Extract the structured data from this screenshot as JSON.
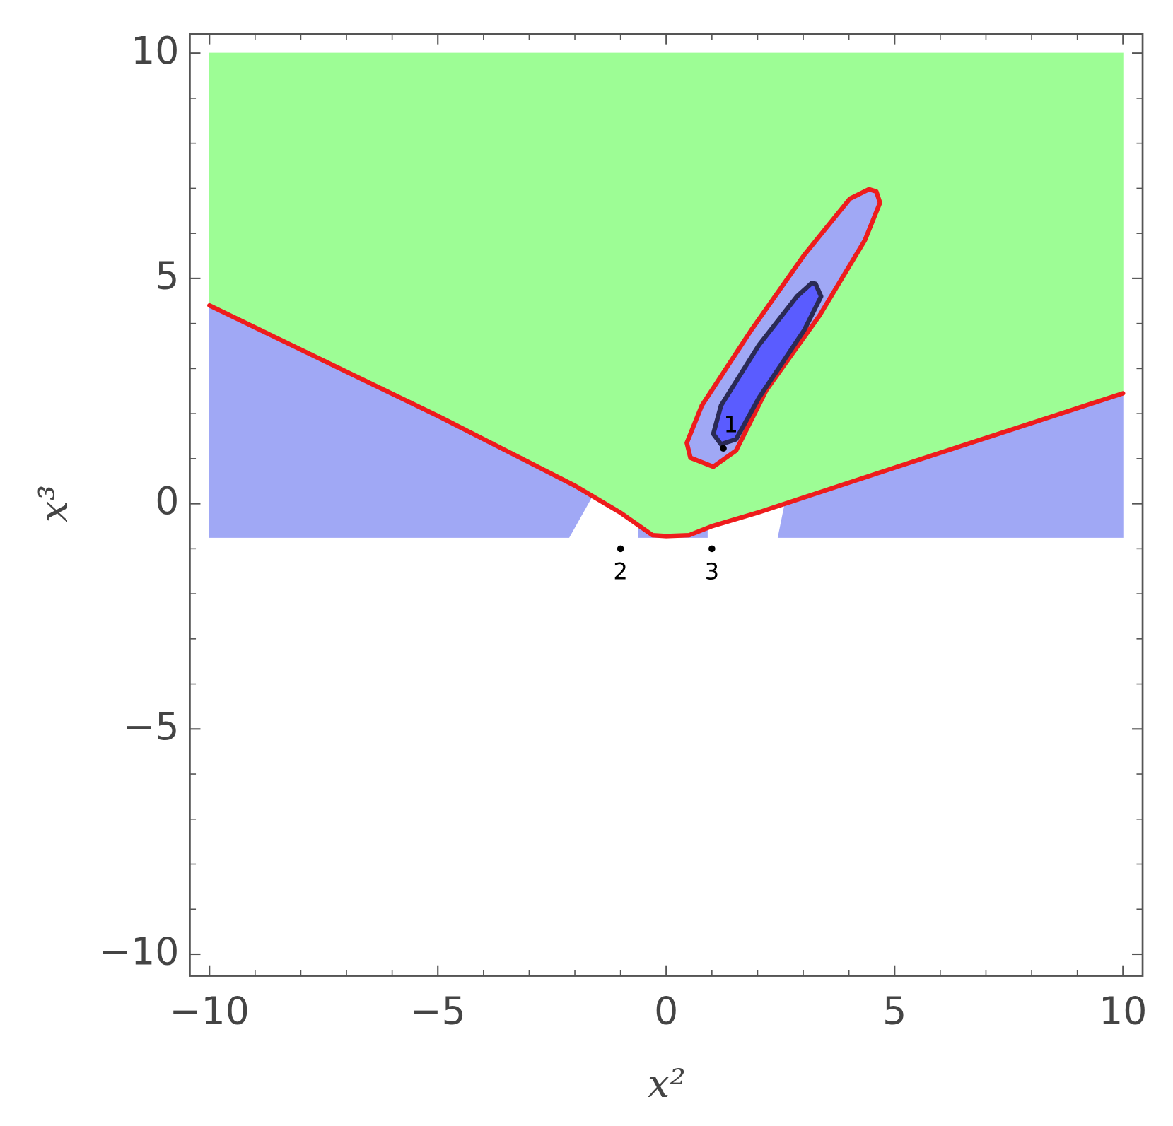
{
  "chart_data": {
    "type": "region",
    "xlabel": "x²",
    "ylabel": "x³",
    "xlim": [
      -10.43,
      10.43
    ],
    "ylim": [
      -10.48,
      10.43
    ],
    "xticks": [
      {
        "value": -10,
        "label": "−10"
      },
      {
        "value": -5,
        "label": "−5"
      },
      0,
      5,
      10
    ],
    "yticks": [
      {
        "value": -10,
        "label": "−10"
      },
      {
        "value": -5,
        "label": "−5"
      },
      0,
      5,
      10
    ],
    "xminorticks": [
      -9,
      -8,
      -7,
      -6,
      -4,
      -3,
      -2,
      -1,
      1,
      2,
      3,
      4,
      6,
      7,
      8,
      9
    ],
    "yminorticks": [
      -9,
      -8,
      -7,
      -6,
      -4,
      -3,
      -2,
      -1,
      1,
      2,
      3,
      4,
      6,
      7,
      8,
      9
    ],
    "regions": [
      {
        "color": "#9dfd95",
        "x": [
          -10,
          10,
          10,
          5,
          2,
          1,
          0.5,
          0,
          -0.3,
          -1,
          -2,
          -5,
          -10
        ],
        "y": [
          10,
          10,
          2.45,
          0.8,
          -0.2,
          -0.5,
          -0.7,
          -0.72,
          -0.7,
          -0.2,
          0.4,
          1.95,
          4.4
        ]
      },
      {
        "color": "#a0a8f5",
        "x": [
          -10,
          -5,
          -2,
          -1.63,
          -2.13,
          -10
        ],
        "y": [
          4.4,
          1.95,
          0.4,
          0.15,
          -0.75,
          -0.75
        ]
      },
      {
        "color": "#a0a8f5",
        "x": [
          -0.6,
          -0.3,
          0,
          0.5,
          0.9,
          0.9,
          -0.6
        ],
        "y": [
          -0.5,
          -0.7,
          -0.72,
          -0.7,
          -0.55,
          -0.75,
          -0.75
        ]
      },
      {
        "color": "#a0a8f5",
        "x": [
          2.6,
          5,
          10,
          10,
          2.45
        ],
        "y": [
          0.0,
          0.8,
          2.45,
          -0.75,
          -0.75
        ]
      },
      {
        "color": "#a0a8f5",
        "x": [
          4.6,
          4.68,
          4.35,
          3.36,
          2.19,
          1.53,
          1.03,
          0.53,
          0.45,
          0.78,
          1.86,
          3.02,
          4.02,
          4.44
        ],
        "y": [
          6.93,
          6.68,
          5.85,
          4.18,
          2.52,
          1.18,
          0.82,
          1.02,
          1.35,
          2.18,
          3.85,
          5.52,
          6.77,
          6.98
        ]
      },
      {
        "color": "#5a5cff",
        "x": [
          3.27,
          3.39,
          3.02,
          2.03,
          1.53,
          1.2,
          1.03,
          1.2,
          2.03,
          2.86,
          3.19
        ],
        "y": [
          4.88,
          4.6,
          3.85,
          2.35,
          1.43,
          1.32,
          1.55,
          2.18,
          3.52,
          4.6,
          4.9
        ]
      }
    ],
    "curves": [
      {
        "color": "#ee1c1c",
        "closed": false,
        "x": [
          -10,
          -5,
          -2,
          -1,
          -0.3,
          0,
          0.5,
          1,
          2,
          5,
          10
        ],
        "y": [
          4.4,
          1.95,
          0.4,
          -0.2,
          -0.7,
          -0.72,
          -0.7,
          -0.5,
          -0.2,
          0.8,
          2.45
        ]
      },
      {
        "color": "#ee1c1c",
        "closed": true,
        "x": [
          4.6,
          4.68,
          4.35,
          3.36,
          2.19,
          1.53,
          1.03,
          0.53,
          0.45,
          0.78,
          1.86,
          3.02,
          4.02,
          4.44
        ],
        "y": [
          6.93,
          6.68,
          5.85,
          4.18,
          2.52,
          1.18,
          0.82,
          1.02,
          1.35,
          2.18,
          3.85,
          5.52,
          6.77,
          6.98
        ]
      },
      {
        "color": "#2a2a55",
        "closed": true,
        "x": [
          3.27,
          3.39,
          3.02,
          2.03,
          1.53,
          1.2,
          1.03,
          1.2,
          2.03,
          2.86,
          3.19
        ],
        "y": [
          4.88,
          4.6,
          3.85,
          2.35,
          1.43,
          1.32,
          1.55,
          2.18,
          3.52,
          4.6,
          4.9
        ]
      }
    ],
    "points": {
      "color": "#000000",
      "x": [
        1.25,
        -1,
        1
      ],
      "y": [
        1.23,
        -1,
        -1
      ],
      "labels": [
        "1",
        "2",
        "3"
      ]
    }
  }
}
